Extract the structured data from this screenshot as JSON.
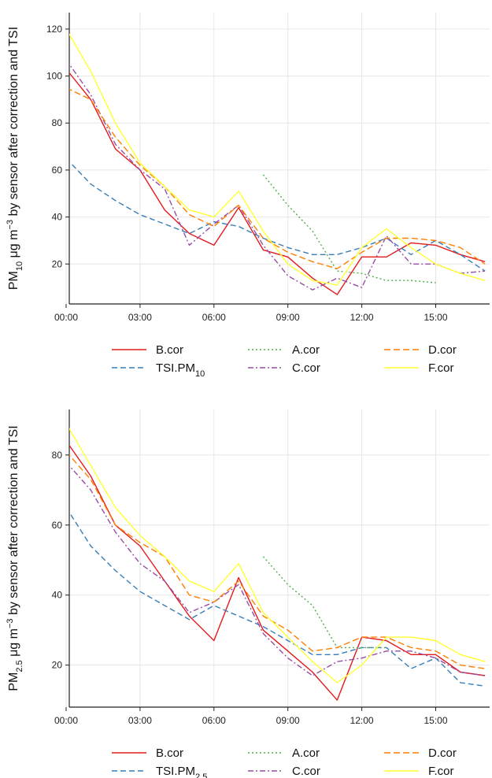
{
  "colors": {
    "B.cor": "#e41a1c",
    "TSI": "#377eb8",
    "A.cor": "#4daf4a",
    "C.cor": "#984ea3",
    "D.cor": "#ff7f00",
    "F.cor": "#ffff33"
  },
  "chart_data": [
    {
      "type": "line",
      "xlabel": "",
      "ylabel": "PM10 μg m−3 by sensor after correction and TSI",
      "ylabel_parts": {
        "pre": "PM",
        "sub": "10",
        "mid": " μg m",
        "sup": "−3",
        "post": " by sensor after correction and TSI"
      },
      "x": [
        "00:00",
        "01:00",
        "02:00",
        "03:00",
        "04:00",
        "05:00",
        "06:00",
        "07:00",
        "08:00",
        "09:00",
        "10:00",
        "11:00",
        "12:00",
        "13:00",
        "14:00",
        "15:00",
        "16:00",
        "17:00"
      ],
      "x_ticks": [
        "00:00",
        "03:00",
        "06:00",
        "09:00",
        "12:00",
        "15:00"
      ],
      "ylim": [
        3,
        127
      ],
      "y_ticks": [
        20,
        40,
        60,
        80,
        100,
        120
      ],
      "grid": true,
      "legend": "bottom",
      "series": [
        {
          "name": "B.cor",
          "key": "B.cor",
          "dash": "",
          "values": [
            103,
            90,
            69,
            60,
            43,
            33,
            28,
            44,
            26,
            23,
            14,
            7,
            23,
            23,
            29,
            28,
            24,
            21
          ]
        },
        {
          "name": "TSI.PM10",
          "key": "TSI",
          "dash": "7,4",
          "values": [
            65,
            54,
            47,
            41,
            37,
            33,
            38,
            36,
            31,
            27,
            24,
            24,
            27,
            31,
            24,
            30,
            24,
            17
          ]
        },
        {
          "name": "A.cor",
          "key": "A.cor",
          "dash": "2,3",
          "values": [
            null,
            null,
            null,
            null,
            null,
            null,
            null,
            null,
            58,
            45,
            34,
            17,
            16,
            13,
            13,
            12,
            null,
            null
          ]
        },
        {
          "name": "C.cor",
          "key": "C.cor",
          "dash": "7,3,2,3",
          "values": [
            107,
            92,
            71,
            60,
            52,
            28,
            37,
            45,
            28,
            15,
            9,
            14,
            10,
            32,
            20,
            20,
            16,
            17
          ]
        },
        {
          "name": "D.cor",
          "key": "D.cor",
          "dash": "8,4",
          "values": [
            95,
            90,
            74,
            62,
            53,
            41,
            36,
            45,
            31,
            25,
            21,
            18,
            25,
            31,
            31,
            30,
            27,
            20
          ]
        },
        {
          "name": "F.cor",
          "key": "F.cor",
          "dash": "",
          "values": [
            120,
            102,
            80,
            63,
            53,
            43,
            40,
            51,
            34,
            20,
            13,
            11,
            27,
            35,
            27,
            20,
            16,
            13
          ]
        }
      ],
      "legend_items": [
        {
          "label": "B.cor",
          "key": "B.cor",
          "dash": "",
          "col": 0,
          "row": 0
        },
        {
          "label": "TSI.PM10",
          "label_pre": "TSI.PM",
          "label_sub": "10",
          "key": "TSI",
          "dash": "7,4",
          "col": 0,
          "row": 1
        },
        {
          "label": "A.cor",
          "key": "A.cor",
          "dash": "2,3",
          "col": 1,
          "row": 0
        },
        {
          "label": "C.cor",
          "key": "C.cor",
          "dash": "7,3,2,3",
          "col": 1,
          "row": 1
        },
        {
          "label": "D.cor",
          "key": "D.cor",
          "dash": "8,4",
          "col": 2,
          "row": 0
        },
        {
          "label": "F.cor",
          "key": "F.cor",
          "dash": "",
          "col": 2,
          "row": 1
        }
      ]
    },
    {
      "type": "line",
      "xlabel": "",
      "ylabel": "PM2.5 μg m−3 by sensor after correction and TSI",
      "ylabel_parts": {
        "pre": "PM",
        "sub": "2.5",
        "mid": " μg m",
        "sup": "−3",
        "post": " by sensor after correction and TSI"
      },
      "x": [
        "00:00",
        "01:00",
        "02:00",
        "03:00",
        "04:00",
        "05:00",
        "06:00",
        "07:00",
        "08:00",
        "09:00",
        "10:00",
        "11:00",
        "12:00",
        "13:00",
        "14:00",
        "15:00",
        "16:00",
        "17:00"
      ],
      "x_ticks": [
        "00:00",
        "03:00",
        "06:00",
        "09:00",
        "12:00",
        "15:00"
      ],
      "ylim": [
        8,
        93
      ],
      "y_ticks": [
        20,
        40,
        60,
        80
      ],
      "grid": true,
      "legend": "bottom",
      "series": [
        {
          "name": "B.cor",
          "key": "B.cor",
          "dash": "",
          "values": [
            84,
            74,
            60,
            54,
            44,
            34,
            27,
            45,
            30,
            24,
            18,
            10,
            28,
            27,
            23,
            23,
            18,
            17
          ]
        },
        {
          "name": "TSI.PM2.5",
          "key": "TSI",
          "dash": "7,4",
          "values": [
            65,
            54,
            47,
            41,
            37,
            33,
            37,
            34,
            31,
            27,
            23,
            23,
            25,
            25,
            19,
            22,
            15,
            14
          ]
        },
        {
          "name": "A.cor",
          "key": "A.cor",
          "dash": "2,3",
          "values": [
            null,
            null,
            null,
            null,
            null,
            null,
            null,
            null,
            51,
            43,
            37,
            25,
            25,
            25,
            null,
            null,
            null,
            null
          ]
        },
        {
          "name": "C.cor",
          "key": "C.cor",
          "dash": "7,3,2,3",
          "values": [
            78,
            70,
            58,
            49,
            44,
            35,
            38,
            43,
            29,
            22,
            17,
            21,
            22,
            24,
            24,
            22,
            18,
            17
          ]
        },
        {
          "name": "D.cor",
          "key": "D.cor",
          "dash": "8,4",
          "values": [
            81,
            73,
            60,
            55,
            51,
            40,
            38,
            44,
            34,
            30,
            24,
            25,
            28,
            28,
            25,
            24,
            20,
            19
          ]
        },
        {
          "name": "F.cor",
          "key": "F.cor",
          "dash": "",
          "values": [
            89,
            77,
            65,
            57,
            51,
            44,
            41,
            49,
            35,
            28,
            21,
            15,
            20,
            28,
            28,
            27,
            23,
            21
          ]
        }
      ],
      "legend_items": [
        {
          "label": "B.cor",
          "key": "B.cor",
          "dash": "",
          "col": 0,
          "row": 0
        },
        {
          "label": "TSI.PM2.5",
          "label_pre": "TSI.PM",
          "label_sub": "2.5",
          "key": "TSI",
          "dash": "7,4",
          "col": 0,
          "row": 1
        },
        {
          "label": "A.cor",
          "key": "A.cor",
          "dash": "2,3",
          "col": 1,
          "row": 0
        },
        {
          "label": "C.cor",
          "key": "C.cor",
          "dash": "7,3,2,3",
          "col": 1,
          "row": 1
        },
        {
          "label": "D.cor",
          "key": "D.cor",
          "dash": "8,4",
          "col": 2,
          "row": 0
        },
        {
          "label": "F.cor",
          "key": "F.cor",
          "dash": "",
          "col": 2,
          "row": 1
        }
      ]
    }
  ]
}
